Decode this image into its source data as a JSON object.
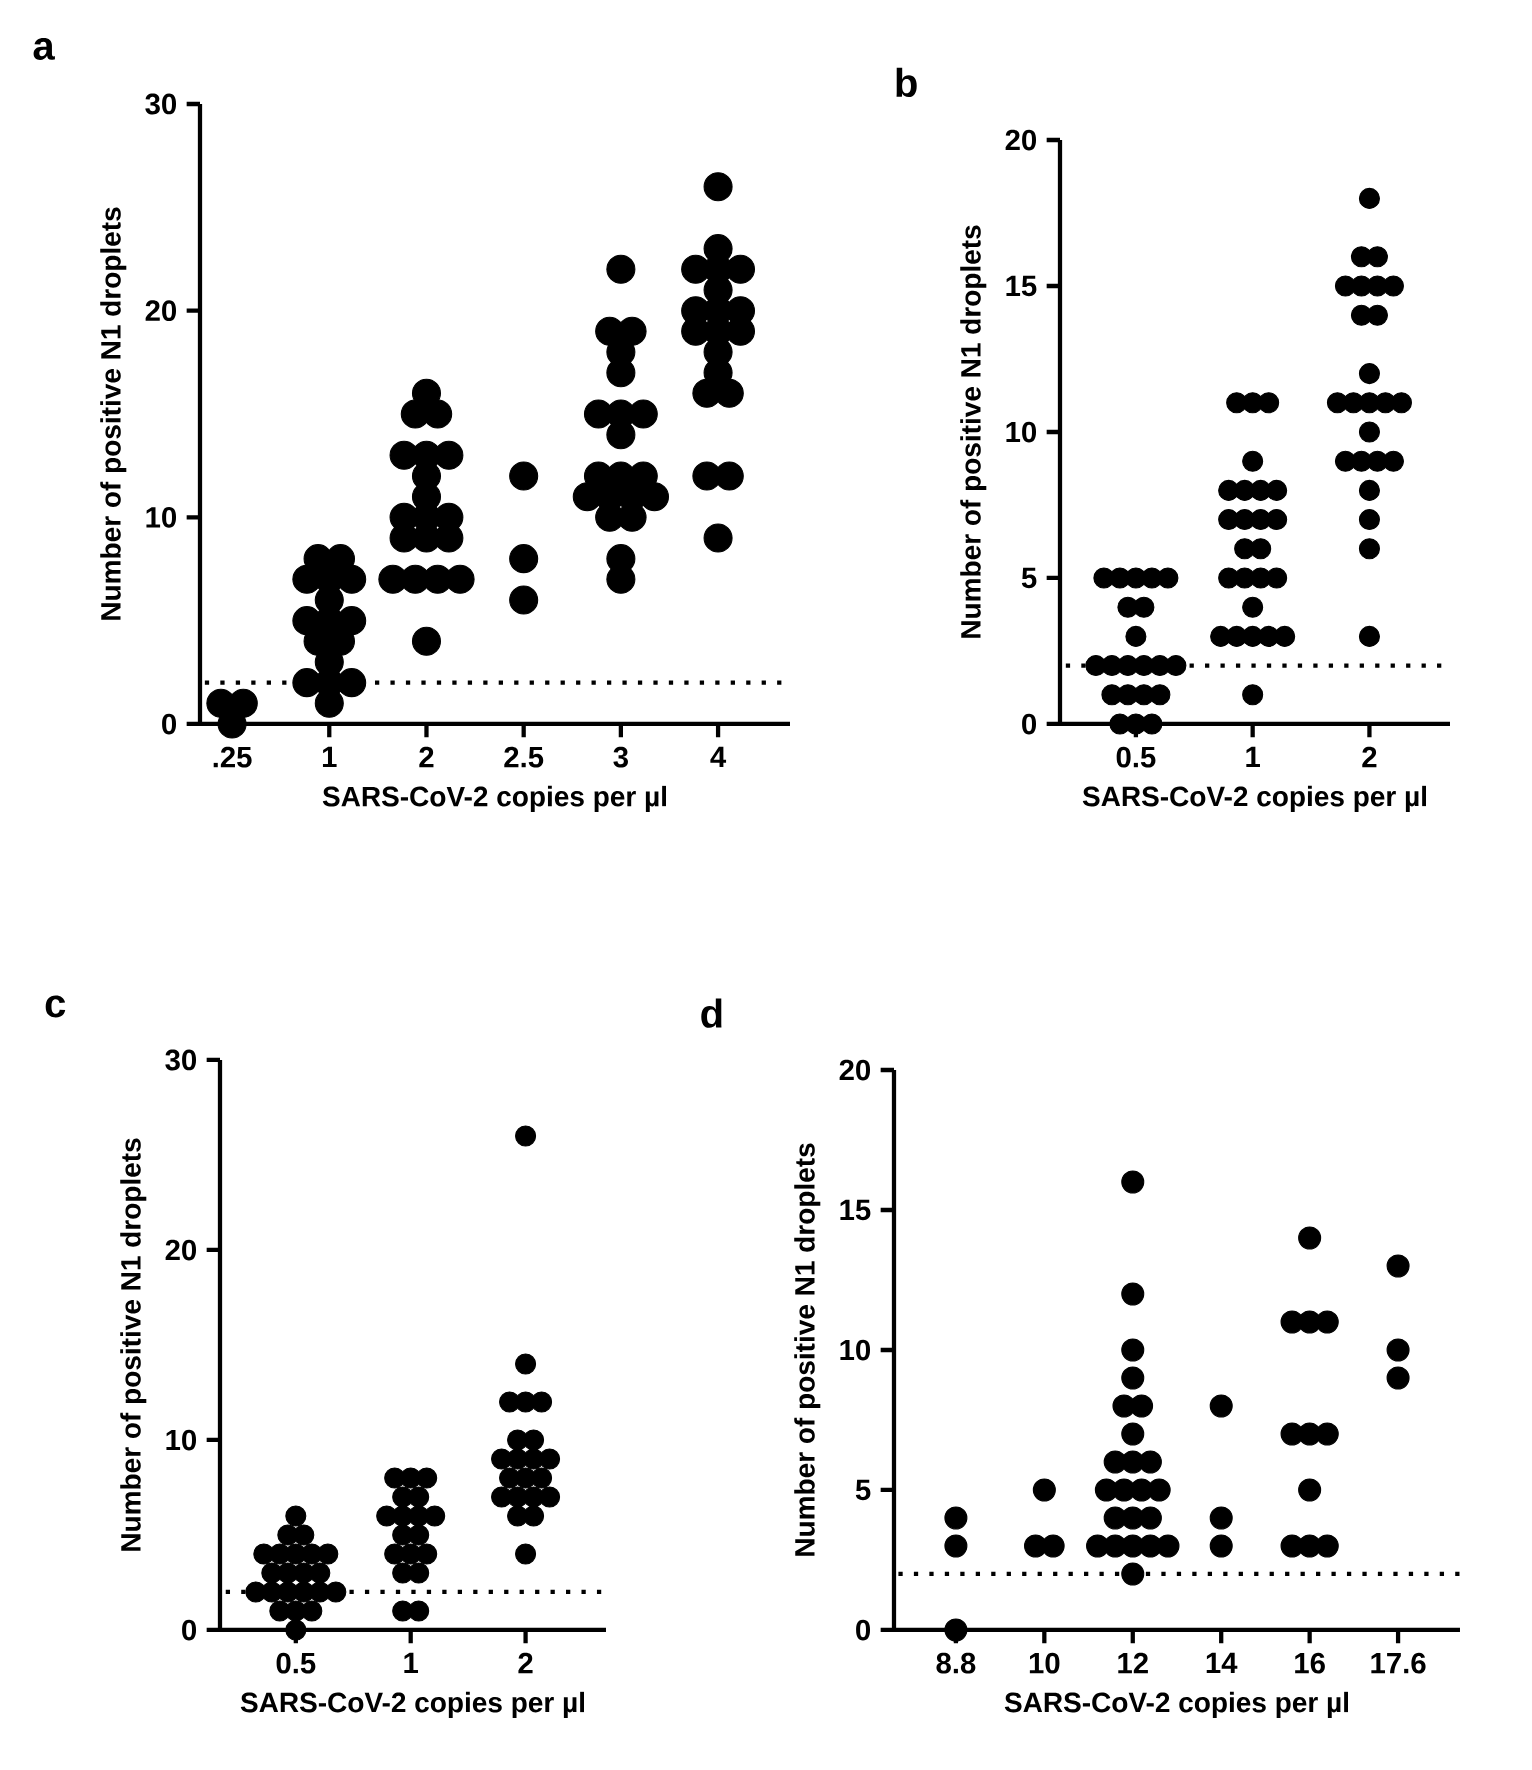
{
  "chart_data": [
    {
      "type": "scatter",
      "title": "a",
      "xlabel": "SARS-CoV-2 copies per µl",
      "ylabel": "Number of positive N1 droplets",
      "categories": [
        ".25",
        "1",
        "2",
        "2.5",
        "3",
        "4"
      ],
      "ylim": [
        0,
        30
      ],
      "yticks": [
        0,
        10,
        20,
        30
      ],
      "marker": "circle",
      "grid": false,
      "series": [
        {
          "color": "#000000",
          "x": [
            ".25",
            ".25",
            ".25",
            "1",
            "1",
            "1",
            "1",
            "1",
            "1",
            "1",
            "1",
            "1",
            "1",
            "1",
            "1",
            "1",
            "1",
            "1",
            "1",
            "2",
            "2",
            "2",
            "2",
            "2",
            "2",
            "2",
            "2",
            "2",
            "2",
            "2",
            "2",
            "2",
            "2",
            "2",
            "2",
            "2",
            "2",
            "2",
            "2.5",
            "2.5",
            "2.5",
            "3",
            "3",
            "3",
            "3",
            "3",
            "3",
            "3",
            "3",
            "3",
            "3",
            "3",
            "3",
            "3",
            "3",
            "3",
            "3",
            "3",
            "3",
            "3",
            "3",
            "4",
            "4",
            "4",
            "4",
            "4",
            "4",
            "4",
            "4",
            "4",
            "4",
            "4",
            "4",
            "4",
            "4",
            "4",
            "4",
            "4",
            "4",
            "4"
          ],
          "values": [
            0,
            1,
            1,
            8,
            8,
            7,
            7,
            7,
            6,
            5,
            5,
            5,
            4,
            4,
            3,
            2,
            2,
            2,
            1,
            16,
            15,
            15,
            13,
            13,
            13,
            12,
            11,
            10,
            10,
            10,
            9,
            9,
            9,
            7,
            7,
            7,
            7,
            4,
            12,
            8,
            6,
            22,
            19,
            19,
            18,
            17,
            15,
            15,
            15,
            14,
            12,
            12,
            12,
            11,
            11,
            11,
            11,
            10,
            10,
            8,
            7,
            26,
            23,
            22,
            22,
            22,
            21,
            20,
            20,
            20,
            19,
            19,
            19,
            18,
            17,
            16,
            16,
            12,
            12,
            9
          ]
        }
      ],
      "ref_lines": [
        {
          "axis": "y",
          "value": 2,
          "line_style": "dotted"
        }
      ]
    },
    {
      "type": "scatter",
      "title": "b",
      "xlabel": "SARS-CoV-2 copies per µl",
      "ylabel": "Number of positive N1 droplets",
      "categories": [
        "0.5",
        "1",
        "2"
      ],
      "ylim": [
        0,
        20
      ],
      "yticks": [
        0,
        5,
        10,
        15,
        20
      ],
      "marker": "circle",
      "grid": false,
      "series": [
        {
          "color": "#000000",
          "x": [
            "0.5",
            "0.5",
            "0.5",
            "0.5",
            "0.5",
            "0.5",
            "0.5",
            "0.5",
            "0.5",
            "0.5",
            "0.5",
            "0.5",
            "0.5",
            "0.5",
            "0.5",
            "0.5",
            "0.5",
            "0.5",
            "0.5",
            "0.5",
            "0.5",
            "1",
            "1",
            "1",
            "1",
            "1",
            "1",
            "1",
            "1",
            "1",
            "1",
            "1",
            "1",
            "1",
            "1",
            "1",
            "1",
            "1",
            "1",
            "1",
            "1",
            "1",
            "1",
            "1",
            "1",
            "1",
            "2",
            "2",
            "2",
            "2",
            "2",
            "2",
            "2",
            "2",
            "2",
            "2",
            "2",
            "2",
            "2",
            "2",
            "2",
            "2",
            "2",
            "2",
            "2",
            "2",
            "2",
            "2",
            "2",
            "2"
          ],
          "values": [
            5,
            5,
            5,
            5,
            5,
            4,
            4,
            3,
            2,
            2,
            2,
            2,
            2,
            2,
            1,
            1,
            1,
            1,
            0,
            0,
            0,
            11,
            11,
            11,
            9,
            8,
            8,
            8,
            8,
            7,
            7,
            7,
            7,
            6,
            6,
            5,
            5,
            5,
            5,
            4,
            3,
            3,
            3,
            3,
            3,
            1,
            18,
            16,
            16,
            15,
            15,
            15,
            15,
            14,
            14,
            12,
            11,
            11,
            11,
            11,
            11,
            10,
            9,
            9,
            9,
            9,
            8,
            7,
            6,
            3
          ]
        }
      ],
      "ref_lines": [
        {
          "axis": "y",
          "value": 2,
          "line_style": "dotted"
        }
      ]
    },
    {
      "type": "scatter",
      "title": "c",
      "xlabel": "SARS-CoV-2 copies per µl",
      "ylabel": "Number of positive N1 droplets",
      "categories": [
        "0.5",
        "1",
        "2"
      ],
      "ylim": [
        0,
        30
      ],
      "yticks": [
        0,
        10,
        20,
        30
      ],
      "marker": "circle",
      "grid": false,
      "series": [
        {
          "color": "#000000",
          "x": [
            "0.5",
            "0.5",
            "0.5",
            "0.5",
            "0.5",
            "0.5",
            "0.5",
            "0.5",
            "0.5",
            "0.5",
            "0.5",
            "0.5",
            "0.5",
            "0.5",
            "0.5",
            "0.5",
            "0.5",
            "0.5",
            "0.5",
            "0.5",
            "0.5",
            "0.5",
            "1",
            "1",
            "1",
            "1",
            "1",
            "1",
            "1",
            "1",
            "1",
            "1",
            "1",
            "1",
            "1",
            "1",
            "1",
            "1",
            "1",
            "1",
            "2",
            "2",
            "2",
            "2",
            "2",
            "2",
            "2",
            "2",
            "2",
            "2",
            "2",
            "2",
            "2",
            "2",
            "2",
            "2",
            "2",
            "2",
            "2",
            "2",
            "2"
          ],
          "values": [
            6,
            5,
            5,
            4,
            4,
            4,
            4,
            4,
            3,
            3,
            3,
            3,
            2,
            2,
            2,
            2,
            2,
            2,
            1,
            1,
            1,
            0,
            8,
            8,
            8,
            7,
            7,
            6,
            6,
            6,
            6,
            5,
            5,
            4,
            4,
            4,
            3,
            3,
            1,
            1,
            26,
            14,
            12,
            12,
            12,
            10,
            10,
            9,
            9,
            9,
            9,
            8,
            8,
            8,
            7,
            7,
            7,
            7,
            6,
            6,
            4
          ]
        }
      ],
      "ref_lines": [
        {
          "axis": "y",
          "value": 2,
          "line_style": "dotted"
        }
      ]
    },
    {
      "type": "scatter",
      "title": "d",
      "xlabel": "SARS-CoV-2 copies per µl",
      "ylabel": "Number of positive N1 droplets",
      "categories": [
        "8.8",
        "10",
        "12",
        "14",
        "16",
        "17.6"
      ],
      "ylim": [
        0,
        20
      ],
      "yticks": [
        0,
        5,
        10,
        15,
        20
      ],
      "marker": "circle",
      "grid": false,
      "series": [
        {
          "color": "#000000",
          "x": [
            "8.8",
            "8.8",
            "8.8",
            "10",
            "10",
            "10",
            "12",
            "12",
            "12",
            "12",
            "12",
            "12",
            "12",
            "12",
            "12",
            "12",
            "12",
            "12",
            "12",
            "12",
            "12",
            "12",
            "12",
            "12",
            "12",
            "12",
            "12",
            "12",
            "12",
            "14",
            "14",
            "14",
            "16",
            "16",
            "16",
            "16",
            "16",
            "16",
            "16",
            "16",
            "16",
            "16",
            "16",
            "17.6",
            "17.6",
            "17.6"
          ],
          "values": [
            4,
            3,
            0,
            5,
            3,
            3,
            16,
            12,
            10,
            9,
            8,
            8,
            7,
            6,
            6,
            6,
            5,
            5,
            5,
            5,
            4,
            4,
            4,
            3,
            3,
            3,
            3,
            3,
            2,
            8,
            4,
            3,
            14,
            11,
            11,
            11,
            7,
            7,
            7,
            5,
            3,
            3,
            3,
            13,
            10,
            9
          ]
        }
      ],
      "ref_lines": [
        {
          "axis": "y",
          "value": 2,
          "line_style": "dotted"
        }
      ]
    }
  ]
}
